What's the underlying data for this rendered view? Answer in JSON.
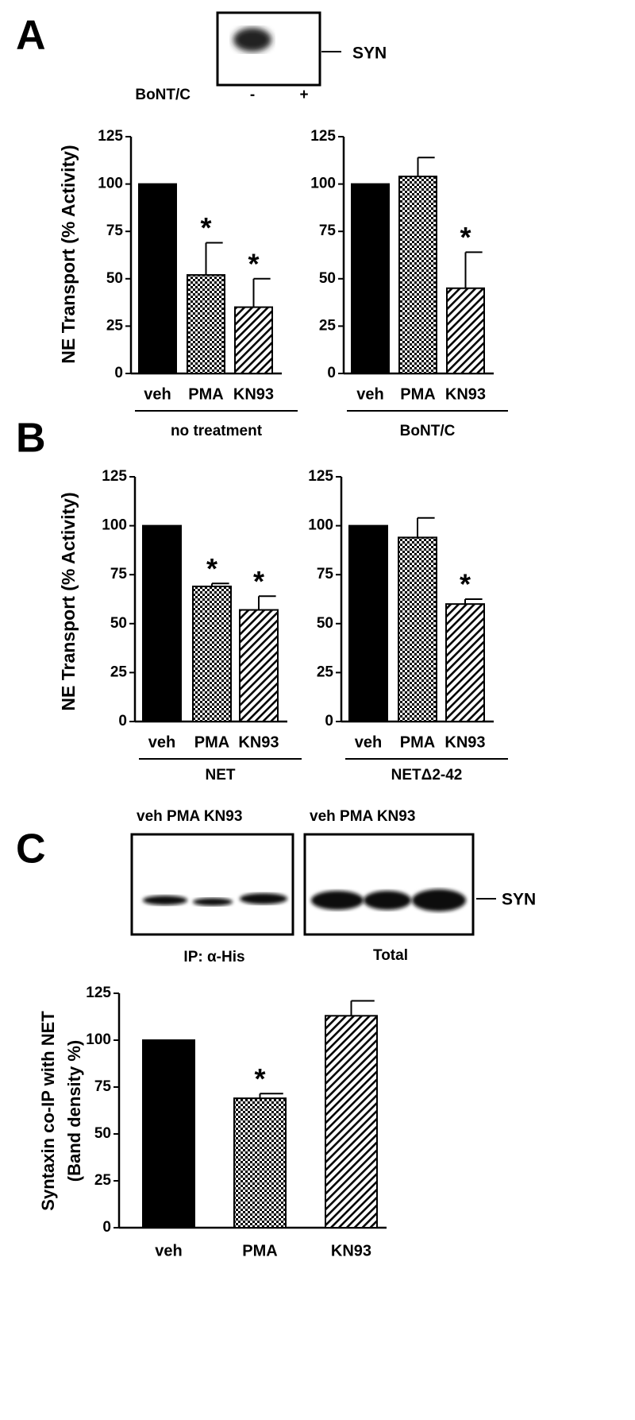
{
  "panels": [
    "A",
    "B",
    "C"
  ],
  "blot_a": {
    "marker": "SYN",
    "treatment": "BoNT/C",
    "lanes": [
      "-",
      "+"
    ]
  },
  "blot_c": {
    "ip_lanes": "veh PMA KN93",
    "total_lanes": "veh PMA KN93",
    "ip_label": "IP: α-His",
    "total_label": "Total",
    "marker": "SYN"
  },
  "chart_data": [
    {
      "type": "bar",
      "ylabel_lines": [
        "NE Transport (% Activity)"
      ],
      "categories": [
        "veh",
        "PMA",
        "KN93"
      ],
      "values": [
        100,
        52,
        35
      ],
      "errors": [
        null,
        17,
        15
      ],
      "significance": [
        null,
        "*",
        "*"
      ],
      "fills": [
        "solid",
        "checker",
        "hatch"
      ],
      "color": "#000000",
      "group": "no treatment",
      "ylim": [
        0,
        125
      ],
      "yticks": [
        0,
        25,
        50,
        75,
        100,
        125
      ]
    },
    {
      "type": "bar",
      "categories": [
        "veh",
        "PMA",
        "KN93"
      ],
      "values": [
        100,
        104,
        45
      ],
      "errors": [
        null,
        10,
        19
      ],
      "significance": [
        null,
        null,
        "*"
      ],
      "fills": [
        "solid",
        "checker",
        "hatch"
      ],
      "color": "#000000",
      "group": "BoNT/C",
      "ylim": [
        0,
        125
      ],
      "yticks": [
        0,
        25,
        50,
        75,
        100,
        125
      ]
    },
    {
      "type": "bar",
      "ylabel_lines": [
        "NE Transport (% Activity)"
      ],
      "categories": [
        "veh",
        "PMA",
        "KN93"
      ],
      "values": [
        100,
        69,
        57
      ],
      "errors": [
        null,
        1.5,
        7
      ],
      "significance": [
        null,
        "*",
        "*"
      ],
      "fills": [
        "solid",
        "checker",
        "hatch"
      ],
      "color": "#000000",
      "group": "NET",
      "ylim": [
        0,
        125
      ],
      "yticks": [
        0,
        25,
        50,
        75,
        100,
        125
      ]
    },
    {
      "type": "bar",
      "categories": [
        "veh",
        "PMA",
        "KN93"
      ],
      "values": [
        100,
        94,
        60
      ],
      "errors": [
        null,
        10,
        2.5
      ],
      "significance": [
        null,
        null,
        "*"
      ],
      "fills": [
        "solid",
        "checker",
        "hatch"
      ],
      "color": "#000000",
      "group": "NETΔ2-42",
      "ylim": [
        0,
        125
      ],
      "yticks": [
        0,
        25,
        50,
        75,
        100,
        125
      ]
    },
    {
      "type": "bar",
      "ylabel_lines": [
        "Syntaxin  co-IP with NET",
        "(Band density %)"
      ],
      "categories": [
        "veh",
        "PMA",
        "KN93"
      ],
      "values": [
        100,
        69,
        113
      ],
      "errors": [
        null,
        2.5,
        8
      ],
      "significance": [
        null,
        "*",
        null
      ],
      "fills": [
        "solid",
        "checker",
        "hatch"
      ],
      "color": "#000000",
      "ylim": [
        0,
        125
      ],
      "yticks": [
        0,
        25,
        50,
        75,
        100,
        125
      ]
    }
  ]
}
